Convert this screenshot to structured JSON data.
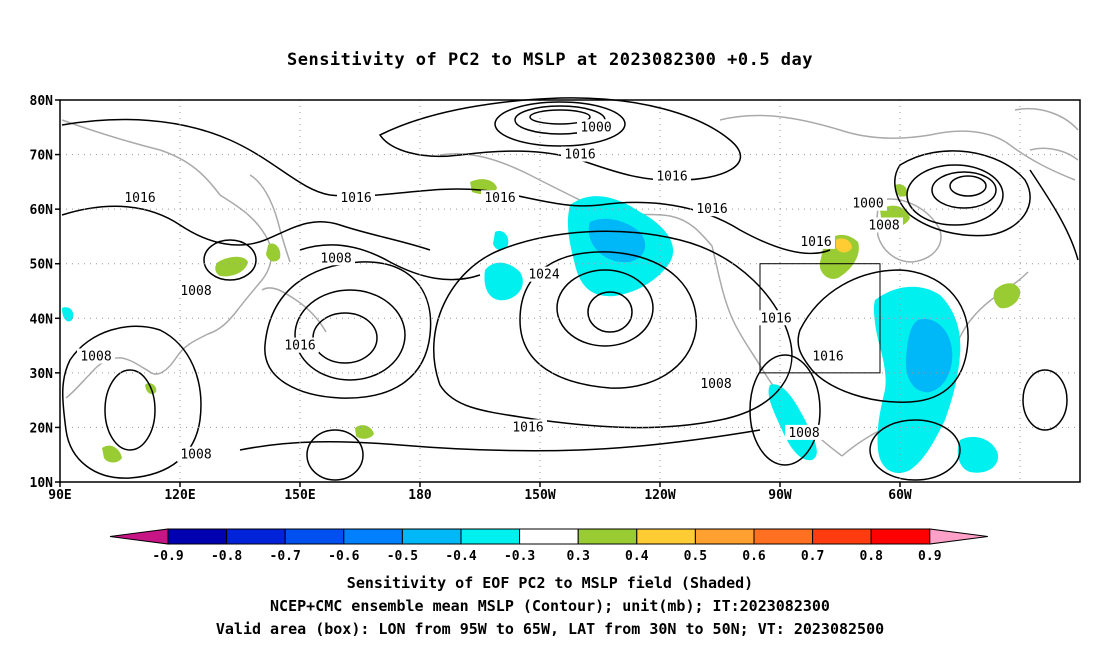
{
  "title": "Sensitivity of PC2 to MSLP at 2023082300 +0.5 day",
  "lat_labels": [
    "80N",
    "70N",
    "60N",
    "50N",
    "40N",
    "30N",
    "20N",
    "10N"
  ],
  "lon_labels": [
    "90E",
    "120E",
    "150E",
    "180",
    "150W",
    "120W",
    "90W",
    "60W"
  ],
  "contour_labels": [
    {
      "value": "1000",
      "lon": 224,
      "lat": 75
    },
    {
      "value": "1016",
      "lon": 220,
      "lat": 70
    },
    {
      "value": "1016",
      "lon": 243,
      "lat": 66
    },
    {
      "value": "1016",
      "lon": 110,
      "lat": 62
    },
    {
      "value": "1016",
      "lon": 164,
      "lat": 62
    },
    {
      "value": "1016",
      "lon": 200,
      "lat": 62
    },
    {
      "value": "1016",
      "lon": 253,
      "lat": 60
    },
    {
      "value": "1000",
      "lon": 292,
      "lat": 61
    },
    {
      "value": "1008",
      "lon": 296,
      "lat": 57
    },
    {
      "value": "1016",
      "lon": 279,
      "lat": 54
    },
    {
      "value": "1008",
      "lon": 159,
      "lat": 51
    },
    {
      "value": "1024",
      "lon": 211,
      "lat": 48
    },
    {
      "value": "1008",
      "lon": 124,
      "lat": 45
    },
    {
      "value": "1016",
      "lon": 269,
      "lat": 40
    },
    {
      "value": "1016",
      "lon": 150,
      "lat": 35
    },
    {
      "value": "1008",
      "lon": 99,
      "lat": 33
    },
    {
      "value": "1016",
      "lon": 282,
      "lat": 33
    },
    {
      "value": "1008",
      "lon": 254,
      "lat": 28
    },
    {
      "value": "1016",
      "lon": 207,
      "lat": 20
    },
    {
      "value": "1008",
      "lon": 276,
      "lat": 19
    },
    {
      "value": "1008",
      "lon": 124,
      "lat": 15
    }
  ],
  "valid_box": {
    "lon_min": 265,
    "lon_max": 295,
    "lat_min": 30,
    "lat_max": 50
  },
  "colorbar": {
    "colors": [
      "#c71585",
      "#0000b0",
      "#0022d8",
      "#0050f0",
      "#0080ff",
      "#00b8f8",
      "#00f0f0",
      "#ffffff",
      "#99cc33",
      "#ffcc33",
      "#ffa030",
      "#ff7020",
      "#ff3c10",
      "#ff0000",
      "#ffa0c8"
    ],
    "labels": [
      "-0.9",
      "-0.8",
      "-0.7",
      "-0.6",
      "-0.5",
      "-0.4",
      "-0.3",
      "0.3",
      "0.4",
      "0.5",
      "0.6",
      "0.7",
      "0.8",
      "0.9"
    ]
  },
  "captions": {
    "line1": "Sensitivity of EOF PC2 to MSLP field (Shaded)",
    "line2": "NCEP+CMC ensemble mean MSLP (Contour); unit(mb); IT:2023082300",
    "line3": "Valid area (box): LON from 95W to 65W, LAT from 30N to 50N; VT: 2023082500"
  }
}
